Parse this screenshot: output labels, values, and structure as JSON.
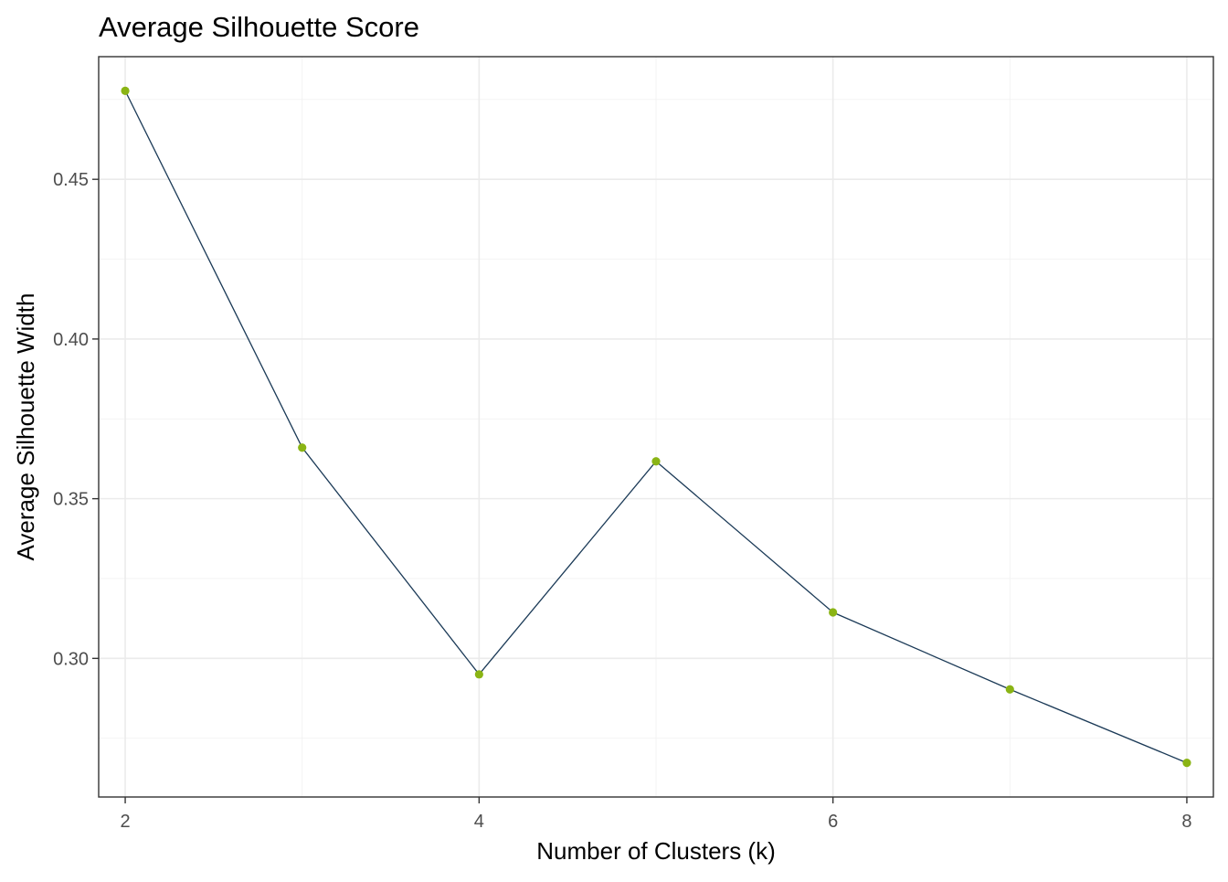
{
  "chart_data": {
    "type": "line",
    "title": "Average Silhouette Score",
    "xlabel": "Number of Clusters (k)",
    "ylabel": "Average Silhouette Width",
    "x": [
      2,
      3,
      4,
      5,
      6,
      7,
      8
    ],
    "series": [
      {
        "values": [
          0.4777,
          0.366,
          0.295,
          0.3617,
          0.3144,
          0.2903,
          0.2673
        ]
      }
    ],
    "xlim": [
      1.85,
      8.15
    ],
    "ylim": [
      0.2566,
      0.4884
    ],
    "x_ticks": [
      2,
      4,
      6,
      8
    ],
    "x_tick_labels": [
      "2",
      "4",
      "6",
      "8"
    ],
    "y_ticks": [
      0.3,
      0.35,
      0.4,
      0.45
    ],
    "y_tick_labels": [
      "0.30",
      "0.35",
      "0.40",
      "0.45"
    ],
    "grid": true,
    "line_color": "#1b3a57",
    "point_color": "#8ab414"
  }
}
